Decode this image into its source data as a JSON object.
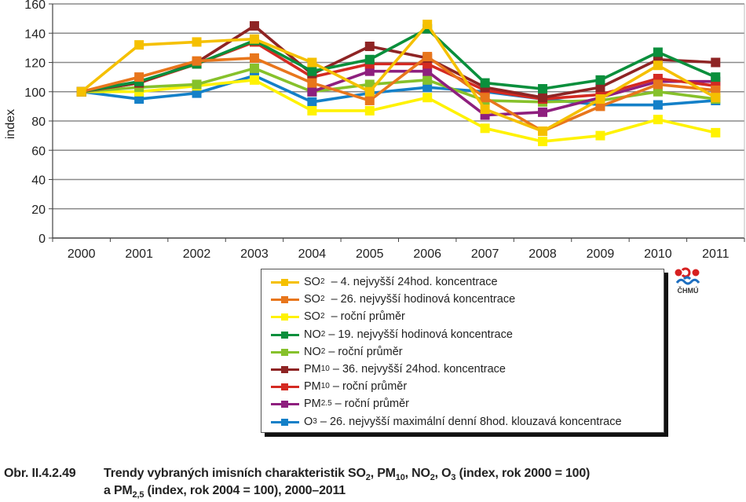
{
  "chart_data": {
    "type": "line",
    "title": "",
    "xlabel": "",
    "ylabel": "index",
    "ylim": [
      0,
      160
    ],
    "yticks": [
      0,
      20,
      40,
      60,
      80,
      100,
      120,
      140,
      160
    ],
    "grid": true,
    "legend_position": "bottom-right",
    "categories": [
      "2000",
      "2001",
      "2002",
      "2003",
      "2004",
      "2005",
      "2006",
      "2007",
      "2008",
      "2009",
      "2010",
      "2011"
    ],
    "series": [
      {
        "name": "SO2 – 4. nejvyšší 24hod. koncentrace",
        "label_main": "SO",
        "label_sub": "2",
        "label_rest": "  – 4. nejvyšší 24hod. koncentrace",
        "color": "#F5C000",
        "values": [
          100,
          132,
          134,
          136,
          120,
          100,
          146,
          88,
          73,
          95,
          118,
          96
        ]
      },
      {
        "name": "SO2 – 26. nejvyšší hodinová koncentrace",
        "label_main": "SO",
        "label_sub": "2",
        "label_rest": "  – 26. nejvyšší hodinová koncentrace",
        "color": "#E8761C",
        "values": [
          100,
          110,
          121,
          123,
          106,
          94,
          124,
          96,
          73,
          90,
          105,
          101
        ]
      },
      {
        "name": "SO2 – roční průměr",
        "label_main": "SO",
        "label_sub": "2",
        "label_rest": "  – roční průměr",
        "color": "#FFF200",
        "values": [
          100,
          100,
          104,
          108,
          87,
          87,
          96,
          75,
          66,
          70,
          81,
          72
        ]
      },
      {
        "name": "NO2 – 19. nejvyšší hodinová koncentrace",
        "label_main": "NO",
        "label_sub": "2",
        "label_rest": " – 19. nejvyšší hodinová koncentrace",
        "color": "#0A8F3C",
        "values": [
          100,
          107,
          119,
          135,
          114,
          122,
          143,
          106,
          102,
          108,
          127,
          110
        ]
      },
      {
        "name": "NO2 – roční průměr",
        "label_main": "NO",
        "label_sub": "2",
        "label_rest": " – roční průměr",
        "color": "#86C12B",
        "values": [
          100,
          103,
          105,
          116,
          100,
          105,
          108,
          94,
          93,
          94,
          100,
          95
        ]
      },
      {
        "name": "PM10 – 36. nejvyšší 24hod. koncentrace",
        "label_main": "PM",
        "label_sub": "10",
        "label_rest": " – 36. nejvyšší 24hod. koncentrace",
        "color": "#8E2424",
        "values": [
          100,
          106,
          120,
          145,
          112,
          131,
          123,
          103,
          96,
          103,
          122,
          120
        ]
      },
      {
        "name": "PM10 – roční průměr",
        "label_main": "PM",
        "label_sub": "10",
        "label_rest": " – roční průměr",
        "color": "#D42A22",
        "values": [
          100,
          106,
          119,
          134,
          110,
          119,
          119,
          101,
          95,
          98,
          109,
          104
        ]
      },
      {
        "name": "PM2.5 – roční průměr",
        "label_main": "PM",
        "label_sub": "2.5",
        "label_rest": " – roční průměr",
        "color": "#8E1F7E",
        "values": [
          null,
          null,
          null,
          null,
          100,
          114,
          114,
          84,
          86,
          96,
          107,
          107
        ]
      },
      {
        "name": "O3 – 26. nejvyšší maximální denní 8hod. klouzavá koncentrace",
        "label_main": "O",
        "label_sub": "3",
        "label_rest": " – 26. nejvyšší maximální denní 8hod. klouzavá koncentrace",
        "color": "#1480C8",
        "values": [
          100,
          95,
          99,
          111,
          93,
          99,
          103,
          100,
          95,
          91,
          91,
          94
        ]
      }
    ],
    "draw_order": [
      8,
      2,
      4,
      7,
      6,
      5,
      3,
      1,
      0
    ]
  },
  "logo": {
    "text": "ČHMÚ"
  },
  "caption": {
    "number": "Obr. II.4.2.49",
    "line1_a": "Trendy vybraných imisních charakteristik SO",
    "line1_b": "2",
    "line1_c": ", PM",
    "line1_d": "10",
    "line1_e": ", NO",
    "line1_f": "2",
    "line1_g": ", O",
    "line1_h": "3",
    "line1_i": " (index, rok 2000 = 100)",
    "line2_a": "a PM",
    "line2_b": "2,5",
    "line2_c": " (index, rok 2004 = 100), 2000–2011"
  }
}
